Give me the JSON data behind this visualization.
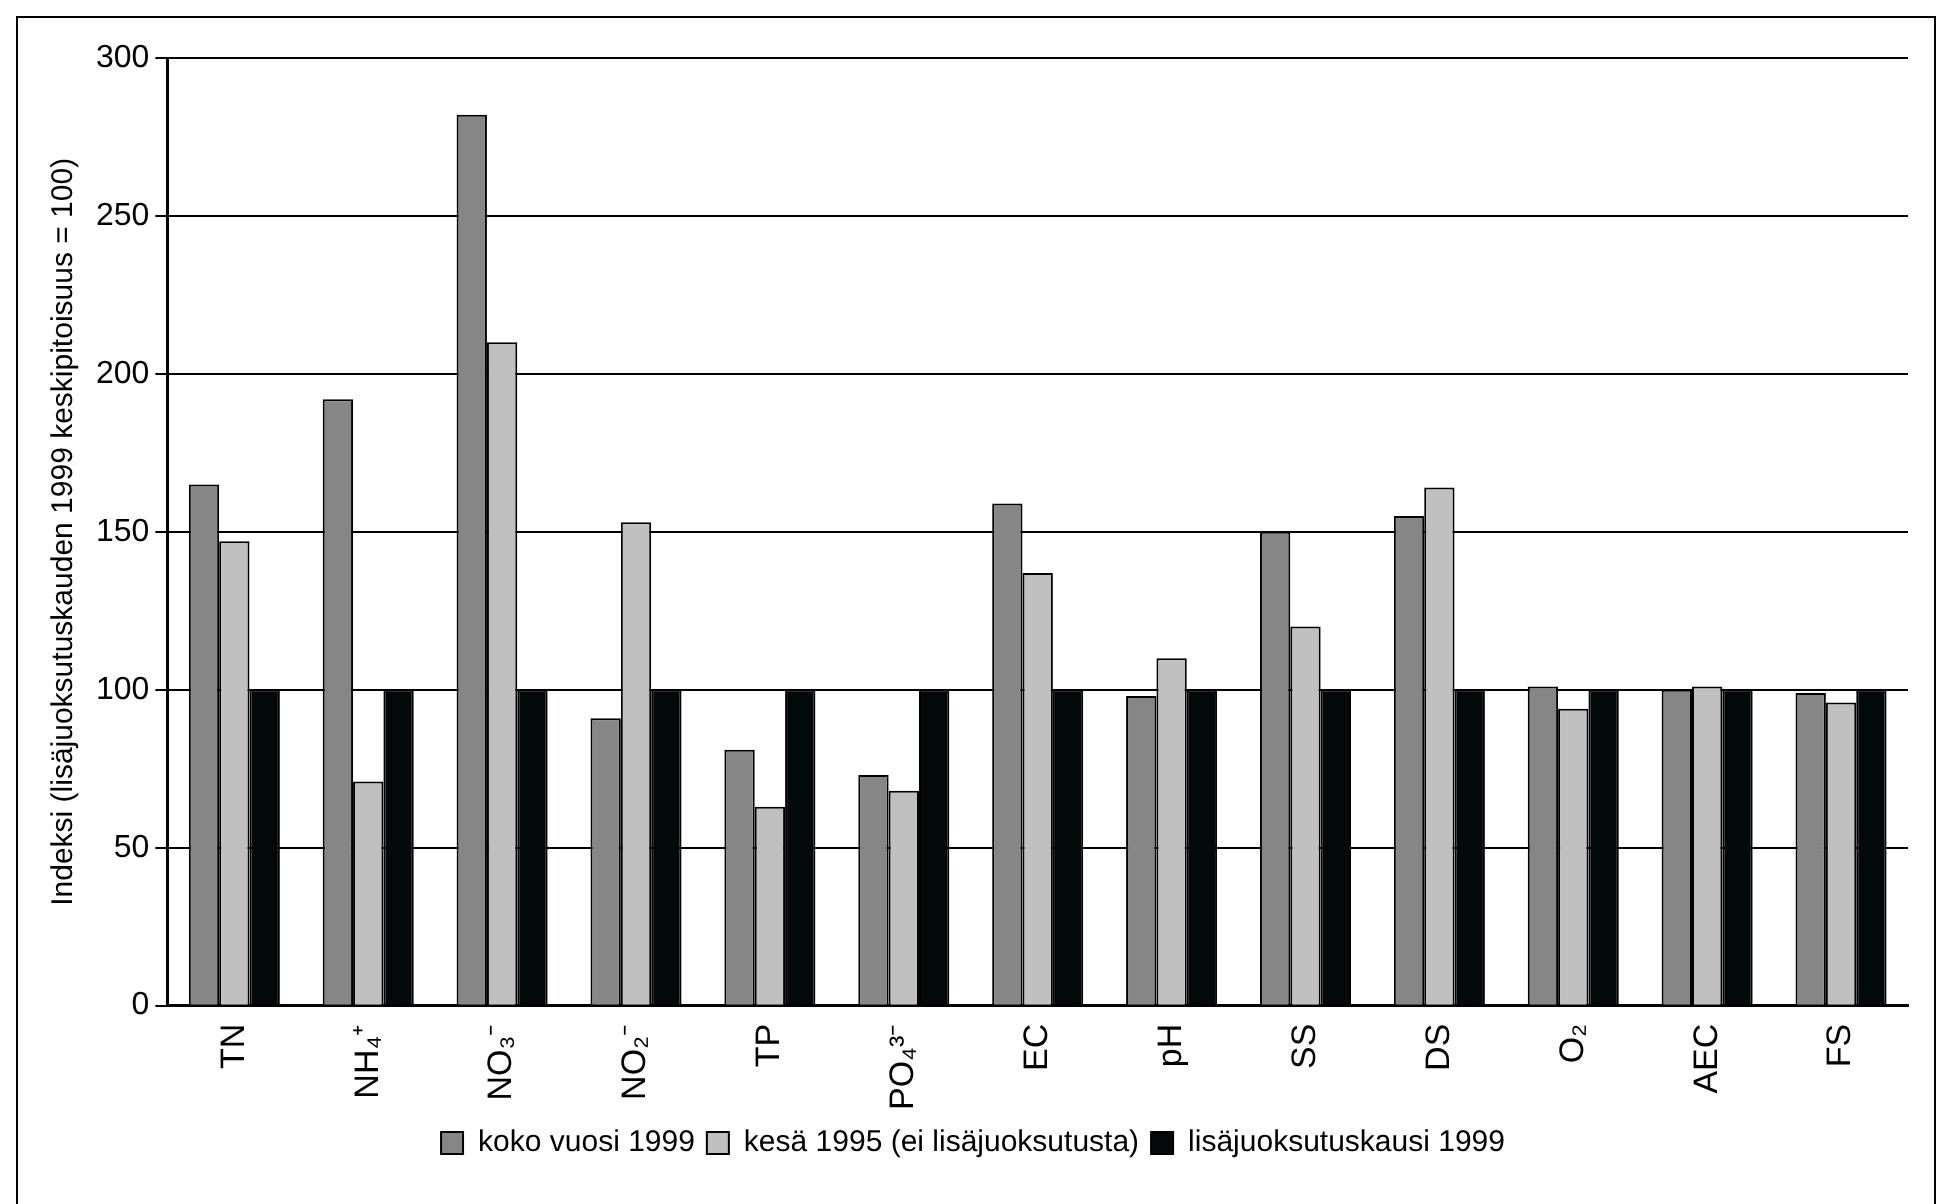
{
  "chart_data": {
    "type": "bar",
    "ylabel": "Indeksi (lisäjuoksutuskauden 1999 keskipitoisuus = 100)",
    "categories": [
      "TN",
      "NH₄⁺",
      "NO₃⁻",
      "NO₂⁻",
      "TP",
      "PO₄³⁻",
      "EC",
      "pH",
      "SS",
      "DS",
      "O₂",
      "AEC",
      "FS"
    ],
    "series": [
      {
        "name": "koko vuosi 1999",
        "color": "#868686",
        "values": [
          165,
          192,
          282,
          91,
          81,
          73,
          159,
          98,
          150,
          155,
          101,
          100,
          99
        ]
      },
      {
        "name": "kesä 1995 (ei lisäjuoksutusta)",
        "color": "#c0c0c0",
        "values": [
          147,
          71,
          210,
          153,
          63,
          68,
          137,
          110,
          120,
          164,
          94,
          101,
          96
        ]
      },
      {
        "name": "lisäjuoksutuskausi 1999",
        "color": "#030808",
        "values": [
          100,
          100,
          100,
          100,
          100,
          100,
          100,
          100,
          100,
          100,
          100,
          100,
          100
        ]
      }
    ],
    "ylim": [
      0,
      300
    ],
    "yticks": [
      0,
      50,
      100,
      150,
      200,
      250,
      300
    ],
    "grid": "y",
    "legend": "bottom"
  }
}
